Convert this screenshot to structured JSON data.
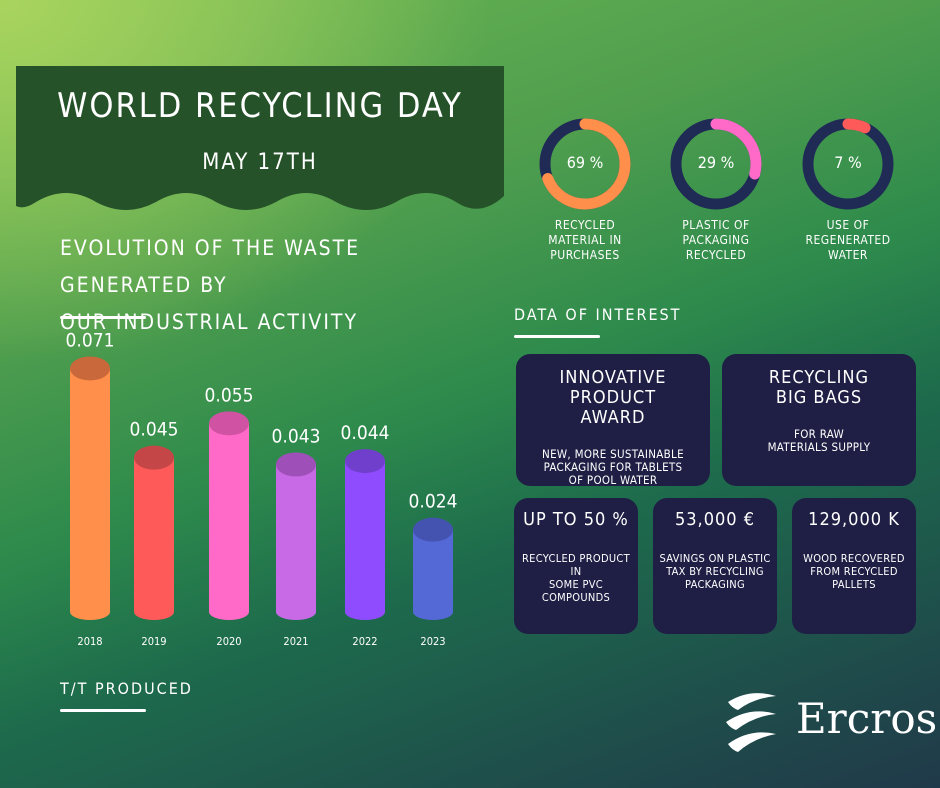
{
  "banner": {
    "title": "WORLD RECYCLING DAY",
    "date": "MAY 17TH",
    "color": "#255229"
  },
  "evolution": {
    "title_line1": "EVOLUTION OF THE WASTE GENERATED BY",
    "title_line2": "OUR INDUSTRIAL ACTIVITY",
    "unit_label": "T/T PRODUCED"
  },
  "chart_data": {
    "type": "bar",
    "categories": [
      "2018",
      "2019",
      "2020",
      "2021",
      "2022",
      "2023"
    ],
    "values": [
      0.071,
      0.045,
      0.055,
      0.043,
      0.044,
      0.024
    ],
    "value_labels": [
      "0.071",
      "0.045",
      "0.055",
      "0.043",
      "0.044",
      "0.024"
    ],
    "colors": [
      "#ff8f4a",
      "#ff5a5a",
      "#ff6ac8",
      "#c86ae6",
      "#8f4cff",
      "#5468d6"
    ],
    "top_colors": [
      "#c9683a",
      "#c44646",
      "#d052a2",
      "#9e50b8",
      "#7040cc",
      "#4452b0"
    ],
    "ylabel": "T/T PRODUCED",
    "grid": false
  },
  "donuts": [
    {
      "value": 69,
      "text": "69 %",
      "label": [
        "RECYCLED",
        "MATERIAL IN",
        "PURCHASES"
      ],
      "color": "#ff8f4a"
    },
    {
      "value": 29,
      "text": "29 %",
      "label": [
        "PLASTIC OF",
        "PACKAGING",
        "RECYCLED"
      ],
      "color": "#ff6ac8"
    },
    {
      "value": 7,
      "text": "7 %",
      "label": [
        "USE OF",
        "REGENERATED",
        "WATER"
      ],
      "color": "#ff5a5a"
    }
  ],
  "donut_track_color": "#1f2a55",
  "interest": {
    "title": "DATA OF INTEREST",
    "cards_top": [
      {
        "title": [
          "INNOVATIVE PRODUCT",
          "AWARD"
        ],
        "text": [
          "NEW, MORE SUSTAINABLE",
          "PACKAGING FOR TABLETS",
          "OF POOL WATER"
        ]
      },
      {
        "title": [
          "RECYCLING",
          "BIG BAGS"
        ],
        "text": [
          "FOR RAW",
          "MATERIALS SUPPLY"
        ]
      }
    ],
    "cards_bottom": [
      {
        "title": "UP TO 50 %",
        "text": [
          "RECYCLED PRODUCT IN",
          "SOME PVC COMPOUNDS"
        ]
      },
      {
        "title": "53,000 €",
        "text": [
          "SAVINGS ON PLASTIC",
          "TAX BY RECYCLING",
          "PACKAGING"
        ]
      },
      {
        "title": "129,000 K",
        "text": [
          "WOOD RECOVERED",
          "FROM RECYCLED",
          "PALLETS"
        ]
      }
    ]
  },
  "logo": {
    "text": "Ercros"
  }
}
